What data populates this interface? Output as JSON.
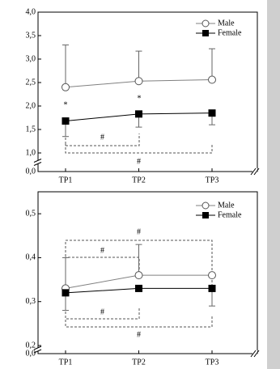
{
  "chart_data": [
    {
      "type": "line",
      "categories": [
        "TP1",
        "TP2",
        "TP3"
      ],
      "series": [
        {
          "name": "Male",
          "color": "#808080",
          "marker": "open-circle",
          "values": [
            2.4,
            2.53,
            2.56
          ],
          "errors": [
            0.9,
            0.64,
            0.66
          ],
          "error_direction": "up"
        },
        {
          "name": "Female",
          "color": "#000000",
          "marker": "filled-square",
          "values": [
            1.68,
            1.83,
            1.85
          ],
          "errors": [
            0.33,
            0.28,
            0.25
          ],
          "error_direction": "down"
        }
      ],
      "ylim": [
        0,
        4.0
      ],
      "yticks": [
        {
          "value": 0,
          "label": "0,0"
        },
        {
          "value": 1.0,
          "label": "1,0"
        },
        {
          "value": 1.5,
          "label": "1,5"
        },
        {
          "value": 2.0,
          "label": "2,0"
        },
        {
          "value": 2.5,
          "label": "2,5"
        },
        {
          "value": 3.0,
          "label": "3,0"
        },
        {
          "value": 3.5,
          "label": "3,5"
        },
        {
          "value": 4.0,
          "label": "4,0"
        }
      ],
      "axis_break": true,
      "legend": "top-right",
      "annotations": [
        {
          "text": "*"
        },
        {
          "text": "*"
        }
      ],
      "brackets": [
        {
          "text": "#"
        },
        {
          "text": "#"
        }
      ]
    },
    {
      "type": "line",
      "categories": [
        "TP1",
        "TP2",
        "TP3"
      ],
      "series": [
        {
          "name": "Male",
          "color": "#808080",
          "marker": "open-circle",
          "values": [
            0.33,
            0.36,
            0.36
          ],
          "errors": [
            0.07,
            0.07,
            null
          ],
          "error_direction": "up"
        },
        {
          "name": "Female",
          "color": "#000000",
          "marker": "filled-square",
          "values": [
            0.32,
            0.33,
            0.33
          ],
          "errors": [
            0.04,
            null,
            0.04
          ],
          "error_direction": "down"
        }
      ],
      "ylim": [
        0,
        0.55
      ],
      "yticks": [
        {
          "value": 0,
          "label": "0,0"
        },
        {
          "value": 0.2,
          "label": "0,2"
        },
        {
          "value": 0.3,
          "label": "0,3"
        },
        {
          "value": 0.4,
          "label": "0,4"
        },
        {
          "value": 0.5,
          "label": "0,5"
        }
      ],
      "axis_break": true,
      "legend": "top-right",
      "brackets": [
        {
          "text": "#"
        },
        {
          "text": "#"
        },
        {
          "text": "#"
        },
        {
          "text": "#"
        }
      ]
    }
  ]
}
